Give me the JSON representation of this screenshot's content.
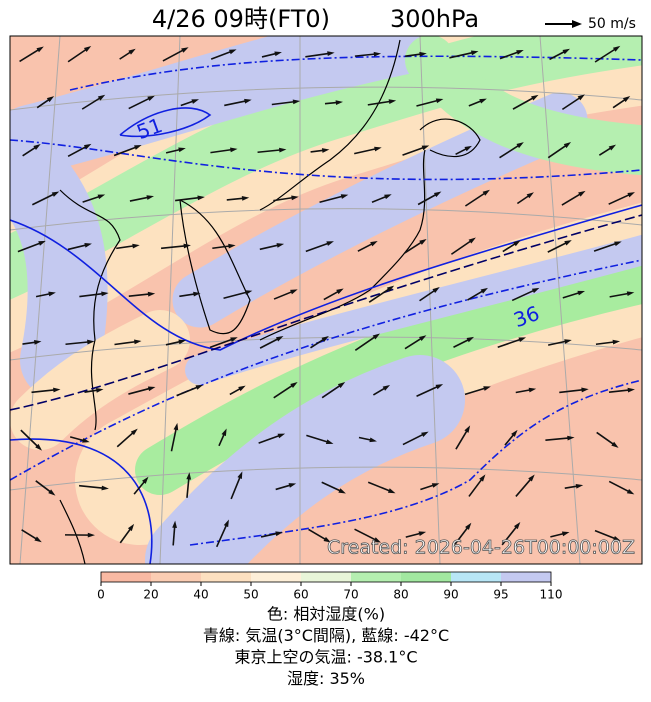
{
  "header": {
    "title": "4/26 09時(FT0)",
    "level": "300hPa",
    "wind_scale": "50 m/s"
  },
  "map": {
    "contour_labels": [
      "51",
      "36"
    ],
    "created": "Created: 2026-04-26T00:00:00Z"
  },
  "colorbar": {
    "ticks": [
      "0",
      "20",
      "40",
      "50",
      "60",
      "70",
      "80",
      "90",
      "95",
      "110"
    ]
  },
  "caption": {
    "lines": [
      "色: 相対湿度(%)",
      "青線: 気温(3°C間隔), 藍線: -42°C",
      "東京上空の気温: -38.1°C",
      "湿度: 35%"
    ]
  }
}
